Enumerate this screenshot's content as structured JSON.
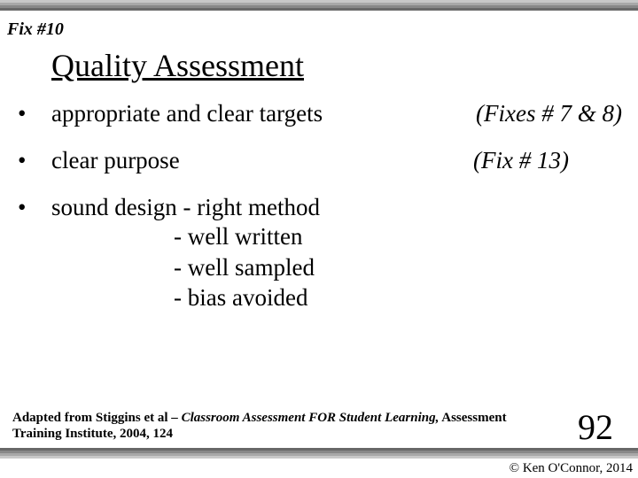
{
  "header": {
    "fix_label": "Fix #10",
    "title": "Quality Assessment"
  },
  "bullets": [
    {
      "text": "appropriate and clear targets",
      "note": "(Fixes # 7 & 8)"
    },
    {
      "text": "clear purpose",
      "note": "(Fix # 13)"
    },
    {
      "text": "sound design - right method",
      "note": "",
      "subs": [
        "- well written",
        "- well sampled",
        "- bias avoided"
      ]
    }
  ],
  "citation": {
    "prefix": "Adapted from Stiggins et al – ",
    "source_title": "Classroom Assessment FOR Student Learning,",
    "suffix": " Assessment Training Institute, 2004, 124"
  },
  "page_number": "92",
  "copyright": "© Ken O'Connor, 2014",
  "colors": {
    "background": "#ffffff",
    "text": "#000000",
    "border_dark": "#686868",
    "border_light": "#c8c8c8"
  },
  "typography": {
    "family": "Times New Roman",
    "title_size_pt": 36,
    "body_size_pt": 27,
    "fix_label_size_pt": 20,
    "citation_size_pt": 15,
    "page_num_size_pt": 40
  }
}
